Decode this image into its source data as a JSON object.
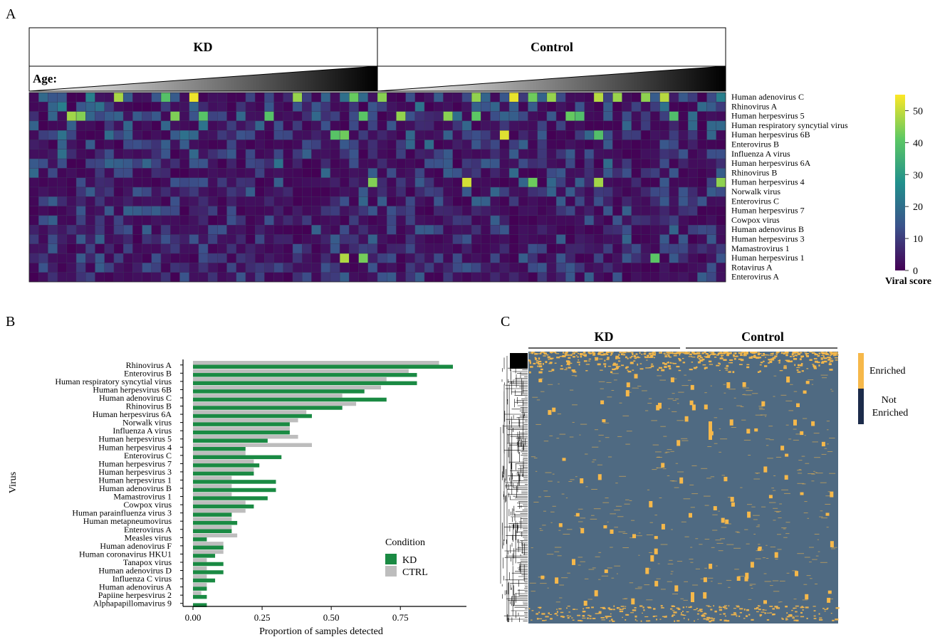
{
  "panels": {
    "a": "A",
    "b": "B",
    "c": "C"
  },
  "colors": {
    "kd": "#1a8a43",
    "ctrl": "#bdbdbd",
    "enriched": "#f6b84a",
    "not_enriched": "#1c2b4a",
    "heat_background": "#4f6a82",
    "viridis": [
      "#440154",
      "#3b528b",
      "#21908c",
      "#5dc863",
      "#fde725"
    ]
  },
  "chart_data": [
    {
      "type": "heatmap",
      "panel": "A",
      "groups": [
        "KD",
        "Control"
      ],
      "group_columns": [
        37,
        37
      ],
      "age_label": "Age:",
      "rows": [
        "Human adenovirus C",
        "Rhinovirus A",
        "Human herpesvirus 5",
        "Human respiratory syncytial virus",
        "Human herpesvirus 6B",
        "Enterovirus B",
        "Influenza A virus",
        "Human herpesvirus 6A",
        "Rhinovirus B",
        "Human herpesvirus 4",
        "Norwalk virus",
        "Enterovirus C",
        "Human herpesvirus 7",
        "Cowpox virus",
        "Human adenovirus B",
        "Human herpesvirus 3",
        "Mamastrovirus 1",
        "Human herpesvirus 1",
        "Rotavirus A",
        "Enterovirus A"
      ],
      "colorbar": {
        "title": "Viral score",
        "ticks": [
          0,
          10,
          20,
          30,
          40,
          50
        ],
        "range": [
          0,
          55
        ]
      },
      "highlights": [
        {
          "row": 0,
          "cols": [
            9,
            14,
            17,
            28,
            34,
            37,
            47,
            51,
            53,
            55,
            60,
            62,
            65,
            67
          ]
        },
        {
          "row": 2,
          "cols": [
            4,
            5,
            15,
            18,
            25,
            35,
            39,
            44,
            47,
            57,
            58,
            68
          ]
        },
        {
          "row": 4,
          "cols": [
            32,
            33,
            50,
            60
          ]
        },
        {
          "row": 9,
          "cols": [
            36,
            46,
            53,
            60,
            73
          ]
        },
        {
          "row": 17,
          "cols": [
            33,
            35,
            66
          ]
        }
      ]
    },
    {
      "type": "bar",
      "panel": "B",
      "orientation": "horizontal",
      "categories": [
        "Rhinovirus A",
        "Enterovirus B",
        "Human respiratory syncytial virus",
        "Human herpesvirus 6B",
        "Human adenovirus C",
        "Rhinovirus B",
        "Human herpesvirus 6A",
        "Norwalk virus",
        "Influenza A virus",
        "Human herpesvirus 5",
        "Human herpesvirus 4",
        "Enterovirus C",
        "Human herpesvirus 7",
        "Human herpesvirus 3",
        "Human herpesvirus 1",
        "Human adenovirus B",
        "Mamastrovirus 1",
        "Cowpox virus",
        "Human parainfluenza virus 3",
        "Human metapneumovirus",
        "Enterovirus A",
        "Measles virus",
        "Human adenovirus F",
        "Human coronavirus HKU1",
        "Tanapox virus",
        "Human adenovirus D",
        "Influenza C virus",
        "Human adenovirus A",
        "Papiine herpesvirus 2",
        "Alphapapillomavirus 9"
      ],
      "series": [
        {
          "name": "CTRL",
          "values": [
            0.89,
            0.78,
            0.7,
            0.68,
            0.54,
            0.59,
            0.41,
            0.38,
            0.35,
            0.38,
            0.43,
            0.19,
            0.22,
            0.22,
            0.14,
            0.14,
            0.14,
            0.19,
            0.19,
            0.14,
            0.14,
            0.16,
            0.11,
            0.11,
            0.05,
            0.05,
            0.05,
            0.05,
            0.03,
            0.0
          ]
        },
        {
          "name": "KD",
          "values": [
            0.94,
            0.81,
            0.81,
            0.62,
            0.7,
            0.54,
            0.43,
            0.35,
            0.35,
            0.27,
            0.19,
            0.32,
            0.24,
            0.22,
            0.3,
            0.3,
            0.27,
            0.22,
            0.14,
            0.16,
            0.14,
            0.05,
            0.11,
            0.08,
            0.11,
            0.11,
            0.08,
            0.05,
            0.05,
            0.05
          ]
        }
      ],
      "xlabel": "Proportion of samples detected",
      "ylabel": "Virus",
      "xticks": [
        "0.00",
        "0.25",
        "0.50",
        "0.75"
      ],
      "xlim": [
        0,
        0.97
      ],
      "legend": {
        "title": "Condition",
        "placement": "bottom-right",
        "entries": [
          "KD",
          "CTRL"
        ]
      }
    },
    {
      "type": "heatmap",
      "panel": "C",
      "groups": [
        "KD",
        "Control"
      ],
      "legend": {
        "entries": [
          "Enriched",
          "Not Enriched"
        ],
        "placement": "right"
      },
      "dendrogram": "left"
    }
  ]
}
